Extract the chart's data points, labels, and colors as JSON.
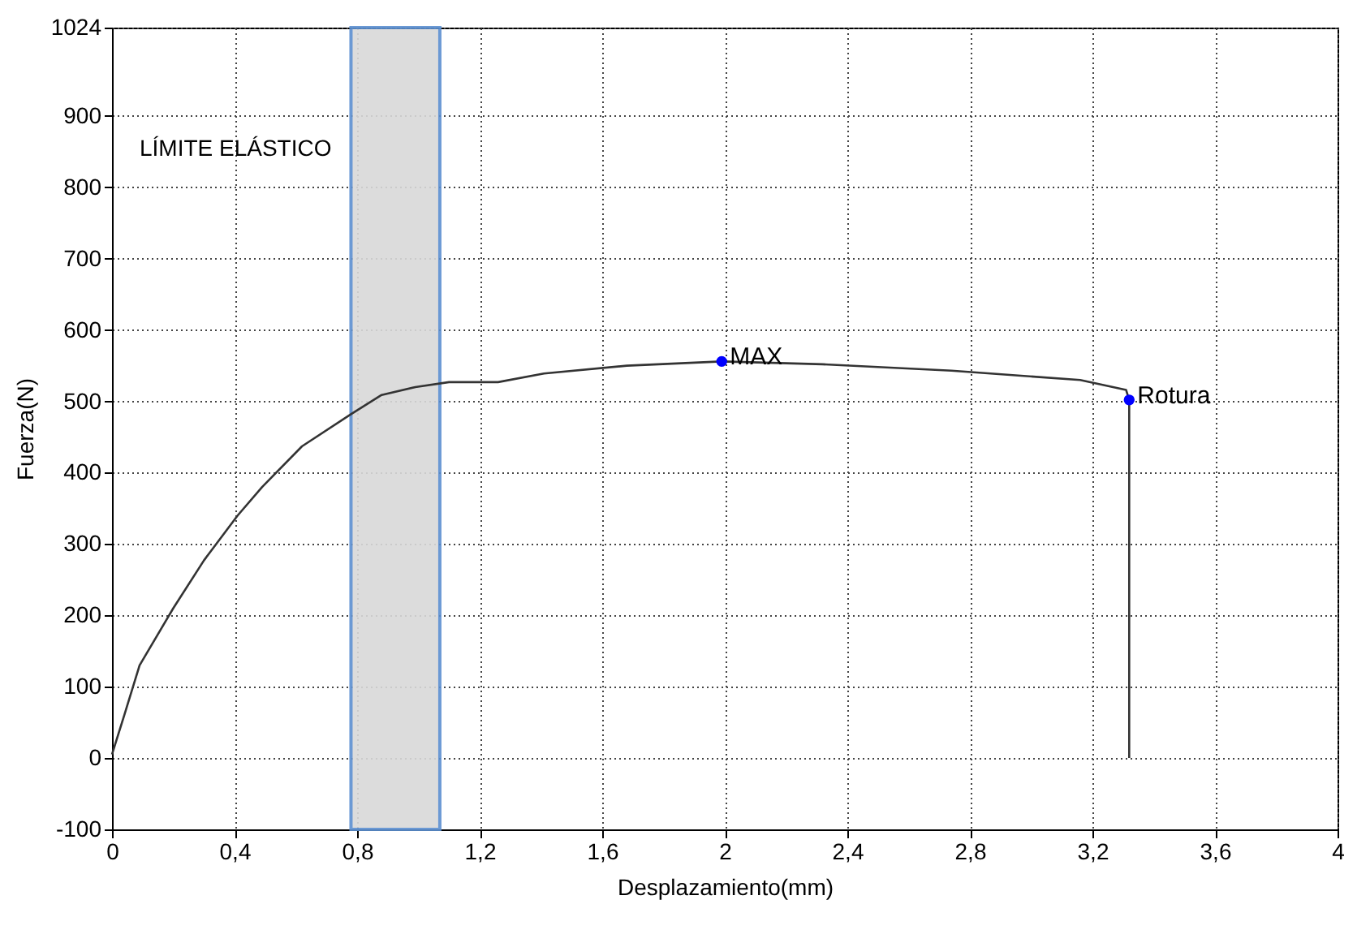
{
  "chart_data": {
    "type": "line",
    "xlabel": "Desplazamiento(mm)",
    "ylabel": "Fuerza(N)",
    "series": [
      {
        "color": "#333333",
        "x": [
          0,
          0.04,
          0.09,
          0.2,
          0.3,
          0.41,
          0.49,
          0.62,
          0.78,
          0.88,
          0.99,
          1.1,
          1.26,
          1.41,
          1.68,
          1.99,
          2.32,
          2.74,
          3.16,
          3.31,
          3.32,
          3.32
        ],
        "values": [
          5,
          60,
          130,
          210,
          277,
          340,
          380,
          437,
          482,
          509,
          520,
          527,
          527,
          539,
          550,
          556,
          552,
          543,
          530,
          516,
          502,
          0
        ]
      },
      {
        "type": "scatter",
        "color": "#0000ff",
        "x": [
          1.99,
          3.32
        ],
        "values": [
          556,
          502
        ],
        "marker": "circle"
      }
    ],
    "annotations": [
      {
        "text": "MAX",
        "x": 1.99,
        "y": 556
      },
      {
        "text": "Rotura",
        "x": 3.32,
        "y": 502
      }
    ],
    "bands": [
      {
        "axis": "x",
        "from": 0.78,
        "to": 1.07,
        "color": "#d9d9d9",
        "label": "LÍMITE ELÁSTICO"
      }
    ],
    "xlim": [
      0,
      4
    ],
    "ylim": [
      -100,
      1024
    ],
    "xticks": [
      0,
      {
        "value": 0.4,
        "label": "0,4"
      },
      {
        "value": 0.8,
        "label": "0,8"
      },
      {
        "value": 1.2,
        "label": "1,2"
      },
      {
        "value": 1.6,
        "label": "1,6"
      },
      2,
      {
        "value": 2.4,
        "label": "2,4"
      },
      {
        "value": 2.8,
        "label": "2,8"
      },
      {
        "value": 3.2,
        "label": "3,2"
      },
      {
        "value": 3.6,
        "label": "3,6"
      },
      4
    ],
    "yticks": [
      -100,
      0,
      100,
      200,
      300,
      400,
      500,
      600,
      700,
      800,
      900,
      1024
    ],
    "grid": true,
    "line_style": "solid"
  }
}
